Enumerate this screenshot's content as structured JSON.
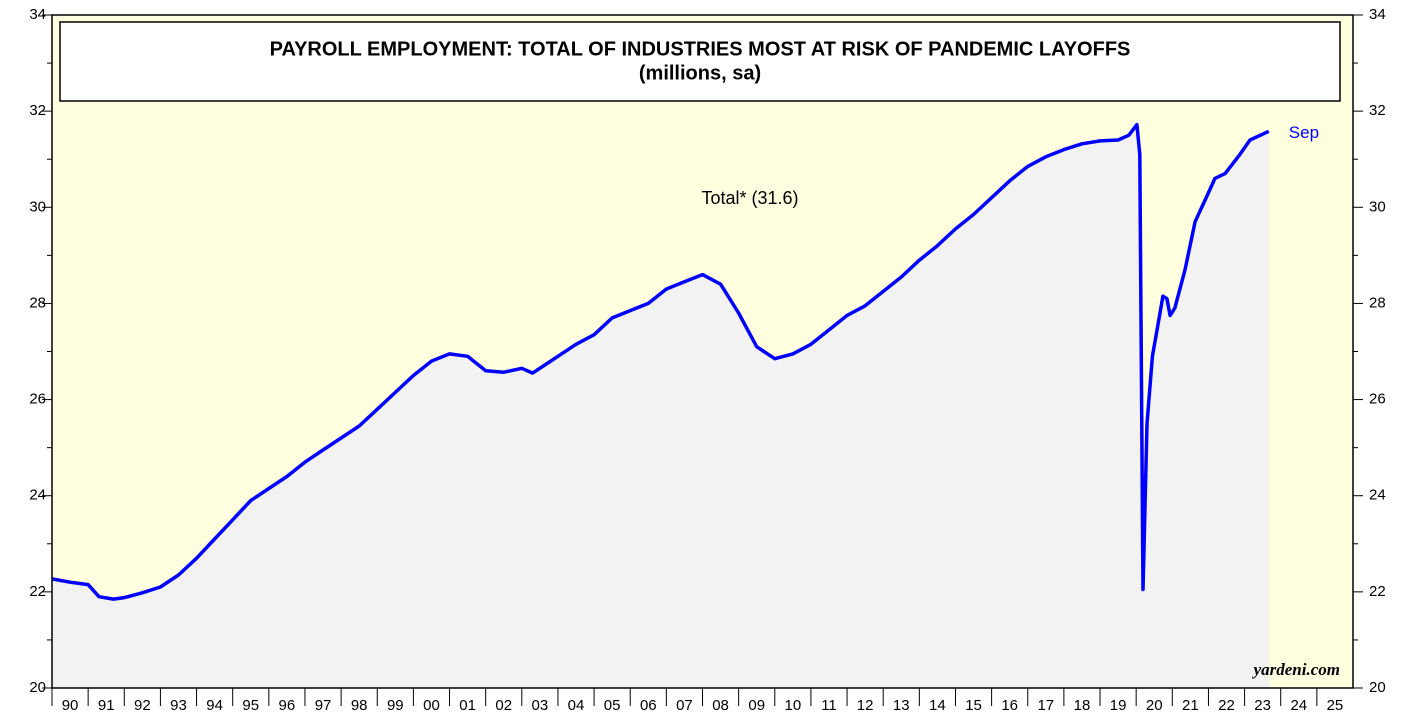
{
  "chart_data": {
    "type": "line",
    "title": "PAYROLL EMPLOYMENT: TOTAL OF INDUSTRIES MOST AT RISK OF PANDEMIC LAYOFFS",
    "subtitle": "(millions, sa)",
    "annotation": "Total* (31.6)",
    "end_label": "Sep",
    "source": "yardeni.com",
    "x": [
      1990.0,
      1990.5,
      1991.0,
      1991.3,
      1991.7,
      1992.0,
      1992.5,
      1993.0,
      1993.5,
      1994.0,
      1994.5,
      1995.0,
      1995.5,
      1996.0,
      1996.5,
      1997.0,
      1997.5,
      1998.0,
      1998.5,
      1999.0,
      1999.5,
      2000.0,
      2000.5,
      2001.0,
      2001.5,
      2002.0,
      2002.5,
      2003.0,
      2003.3,
      2003.7,
      2004.0,
      2004.5,
      2005.0,
      2005.5,
      2006.0,
      2006.5,
      2007.0,
      2007.5,
      2008.0,
      2008.5,
      2009.0,
      2009.5,
      2010.0,
      2010.5,
      2011.0,
      2011.5,
      2012.0,
      2012.5,
      2013.0,
      2013.5,
      2014.0,
      2014.5,
      2015.0,
      2015.5,
      2016.0,
      2016.5,
      2017.0,
      2017.5,
      2018.0,
      2018.5,
      2019.0,
      2019.5,
      2019.8,
      2020.02,
      2020.1,
      2020.19,
      2020.3,
      2020.45,
      2020.66,
      2020.74,
      2020.85,
      2020.94,
      2021.07,
      2021.35,
      2021.63,
      2022.0,
      2022.18,
      2022.46,
      2022.87,
      2023.15,
      2023.67
    ],
    "series": [
      {
        "name": "Total",
        "color": "#0000ff",
        "values": [
          22.27,
          22.2,
          22.15,
          21.9,
          21.85,
          21.88,
          21.98,
          22.1,
          22.35,
          22.7,
          23.1,
          23.5,
          23.9,
          24.15,
          24.4,
          24.7,
          24.95,
          25.2,
          25.45,
          25.8,
          26.15,
          26.5,
          26.8,
          26.95,
          26.9,
          26.6,
          26.57,
          26.65,
          26.55,
          26.75,
          26.9,
          27.15,
          27.35,
          27.7,
          27.85,
          28.0,
          28.3,
          28.45,
          28.6,
          28.4,
          27.8,
          27.1,
          26.85,
          26.95,
          27.15,
          27.45,
          27.75,
          27.95,
          28.25,
          28.55,
          28.9,
          29.2,
          29.55,
          29.85,
          30.2,
          30.55,
          30.85,
          31.05,
          31.2,
          31.32,
          31.38,
          31.4,
          31.5,
          31.72,
          31.1,
          22.05,
          25.5,
          26.9,
          27.8,
          28.15,
          28.1,
          27.75,
          27.9,
          28.7,
          29.7,
          30.3,
          30.6,
          30.7,
          31.1,
          31.4,
          31.58
        ]
      }
    ],
    "xlim": [
      1990,
      2026
    ],
    "xticks": [
      {
        "value": 1990,
        "label": "90"
      },
      {
        "value": 1991,
        "label": "91"
      },
      {
        "value": 1992,
        "label": "92"
      },
      {
        "value": 1993,
        "label": "93"
      },
      {
        "value": 1994,
        "label": "94"
      },
      {
        "value": 1995,
        "label": "95"
      },
      {
        "value": 1996,
        "label": "96"
      },
      {
        "value": 1997,
        "label": "97"
      },
      {
        "value": 1998,
        "label": "98"
      },
      {
        "value": 1999,
        "label": "99"
      },
      {
        "value": 2000,
        "label": "00"
      },
      {
        "value": 2001,
        "label": "01"
      },
      {
        "value": 2002,
        "label": "02"
      },
      {
        "value": 2003,
        "label": "03"
      },
      {
        "value": 2004,
        "label": "04"
      },
      {
        "value": 2005,
        "label": "05"
      },
      {
        "value": 2006,
        "label": "06"
      },
      {
        "value": 2007,
        "label": "07"
      },
      {
        "value": 2008,
        "label": "08"
      },
      {
        "value": 2009,
        "label": "09"
      },
      {
        "value": 2010,
        "label": "10"
      },
      {
        "value": 2011,
        "label": "11"
      },
      {
        "value": 2012,
        "label": "12"
      },
      {
        "value": 2013,
        "label": "13"
      },
      {
        "value": 2014,
        "label": "14"
      },
      {
        "value": 2015,
        "label": "15"
      },
      {
        "value": 2016,
        "label": "16"
      },
      {
        "value": 2017,
        "label": "17"
      },
      {
        "value": 2018,
        "label": "18"
      },
      {
        "value": 2019,
        "label": "19"
      },
      {
        "value": 2020,
        "label": "20"
      },
      {
        "value": 2021,
        "label": "21"
      },
      {
        "value": 2022,
        "label": "22"
      },
      {
        "value": 2023,
        "label": "23"
      },
      {
        "value": 2024,
        "label": "24"
      },
      {
        "value": 2025,
        "label": "25"
      }
    ],
    "ylim": [
      20,
      34
    ],
    "yticks": [
      20,
      22,
      24,
      26,
      28,
      30,
      32,
      34
    ],
    "y2lim": [
      20,
      34
    ],
    "y2ticks": [
      20,
      22,
      24,
      26,
      28,
      30,
      32,
      34
    ]
  }
}
